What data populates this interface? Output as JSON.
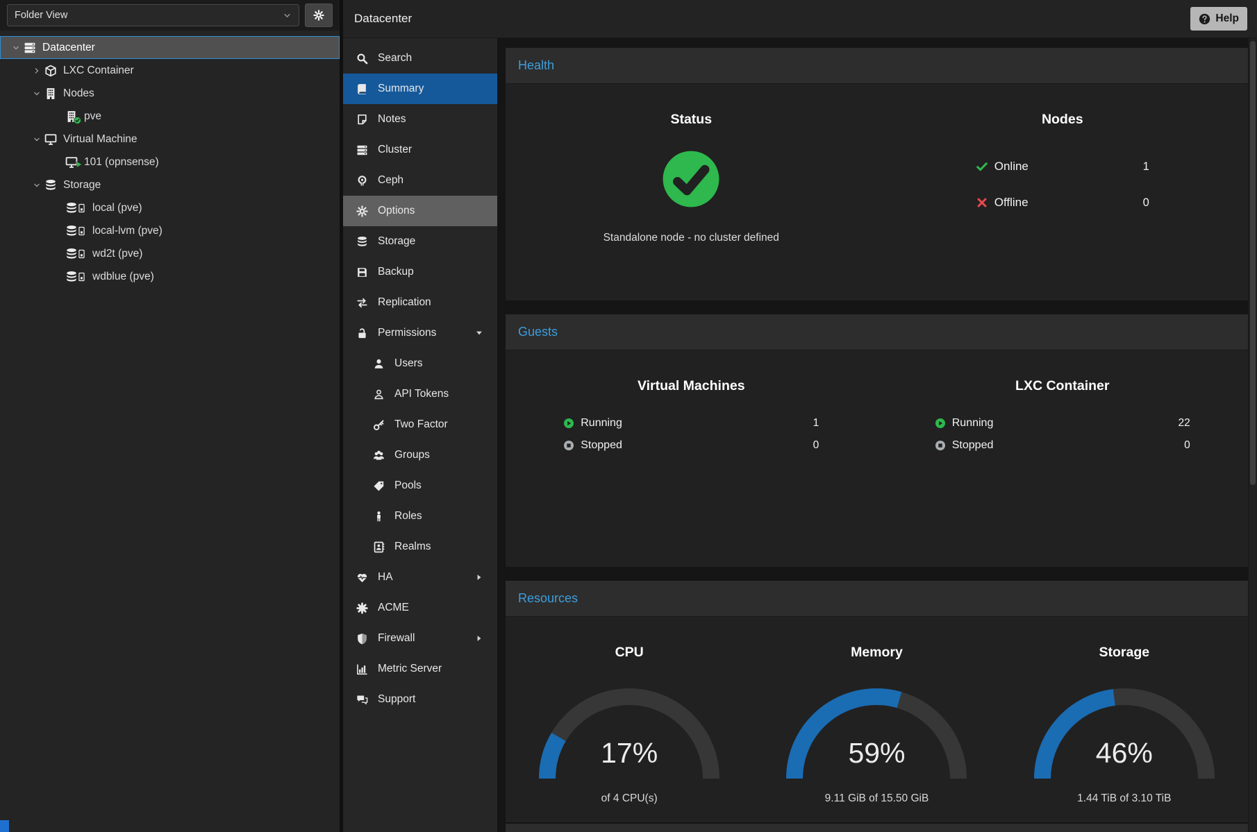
{
  "header": {
    "page_title": "Datacenter",
    "help_label": "Help"
  },
  "tree": {
    "view_selector": "Folder View",
    "items": [
      {
        "label": "Datacenter",
        "icon": "server",
        "level": 0,
        "expander": "down",
        "selected": true
      },
      {
        "label": "LXC Container",
        "icon": "cube",
        "level": 1,
        "expander": "right"
      },
      {
        "label": "Nodes",
        "icon": "building",
        "level": 1,
        "expander": "down"
      },
      {
        "label": "pve",
        "icon": "building-check",
        "level": 2
      },
      {
        "label": "Virtual Machine",
        "icon": "desktop",
        "level": 1,
        "expander": "down"
      },
      {
        "label": "101 (opnsense)",
        "icon": "desktop-play",
        "level": 2
      },
      {
        "label": "Storage",
        "icon": "database",
        "level": 1,
        "expander": "down"
      },
      {
        "label": "local (pve)",
        "icon": "db-drive",
        "level": 2
      },
      {
        "label": "local-lvm (pve)",
        "icon": "db-drive",
        "level": 2
      },
      {
        "label": "wd2t (pve)",
        "icon": "db-drive",
        "level": 2
      },
      {
        "label": "wdblue (pve)",
        "icon": "db-drive",
        "level": 2
      }
    ]
  },
  "nav": {
    "items": [
      {
        "label": "Search",
        "icon": "search"
      },
      {
        "label": "Summary",
        "icon": "book",
        "selected": true
      },
      {
        "label": "Notes",
        "icon": "note"
      },
      {
        "label": "Cluster",
        "icon": "server"
      },
      {
        "label": "Ceph",
        "icon": "ceph"
      },
      {
        "label": "Options",
        "icon": "gear",
        "hovered": true
      },
      {
        "label": "Storage",
        "icon": "database"
      },
      {
        "label": "Backup",
        "icon": "floppy"
      },
      {
        "label": "Replication",
        "icon": "replication"
      },
      {
        "label": "Permissions",
        "icon": "unlock",
        "expander": "down"
      },
      {
        "label": "Users",
        "icon": "user",
        "sub": true
      },
      {
        "label": "API Tokens",
        "icon": "user-outline",
        "sub": true
      },
      {
        "label": "Two Factor",
        "icon": "key",
        "sub": true
      },
      {
        "label": "Groups",
        "icon": "users",
        "sub": true
      },
      {
        "label": "Pools",
        "icon": "tag",
        "sub": true
      },
      {
        "label": "Roles",
        "icon": "person",
        "sub": true
      },
      {
        "label": "Realms",
        "icon": "address-book",
        "sub": true
      },
      {
        "label": "HA",
        "icon": "heartbeat",
        "expander": "right"
      },
      {
        "label": "ACME",
        "icon": "certificate"
      },
      {
        "label": "Firewall",
        "icon": "shield",
        "expander": "right"
      },
      {
        "label": "Metric Server",
        "icon": "bar-chart"
      },
      {
        "label": "Support",
        "icon": "comments"
      }
    ]
  },
  "health": {
    "title": "Health",
    "status": {
      "title": "Status",
      "message": "Standalone node - no cluster defined"
    },
    "nodes": {
      "title": "Nodes",
      "rows": [
        {
          "label": "Online",
          "value": "1",
          "icon": "check"
        },
        {
          "label": "Offline",
          "value": "0",
          "icon": "cross"
        }
      ]
    }
  },
  "guests": {
    "title": "Guests",
    "groups": [
      {
        "title": "Virtual Machines",
        "rows": [
          {
            "label": "Running",
            "value": "1",
            "icon": "play"
          },
          {
            "label": "Stopped",
            "value": "0",
            "icon": "stop"
          }
        ]
      },
      {
        "title": "LXC Container",
        "rows": [
          {
            "label": "Running",
            "value": "22",
            "icon": "play"
          },
          {
            "label": "Stopped",
            "value": "0",
            "icon": "stop"
          }
        ]
      }
    ]
  },
  "resources": {
    "title": "Resources",
    "gauges": [
      {
        "type": "gauge",
        "title": "CPU",
        "percent": 17,
        "percent_label": "17%",
        "subtitle": "of 4 CPU(s)"
      },
      {
        "type": "gauge",
        "title": "Memory",
        "percent": 59,
        "percent_label": "59%",
        "subtitle": "9.11 GiB of 15.50 GiB"
      },
      {
        "type": "gauge",
        "title": "Storage",
        "percent": 46,
        "percent_label": "46%",
        "subtitle": "1.44 TiB of 3.10 TiB"
      }
    ]
  },
  "colors": {
    "accent_blue": "#3d9edd",
    "selected_blue": "#15599b",
    "gauge_blue": "#1a6cb3",
    "gauge_track": "#373737",
    "ok_green": "#2eb84d",
    "error_red": "#e5484d",
    "stopped_gray": "#a9aeb1"
  }
}
